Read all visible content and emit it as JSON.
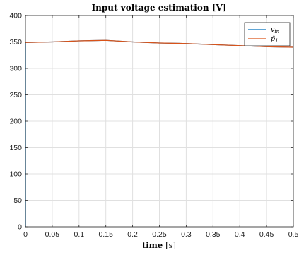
{
  "chart_data": {
    "type": "line",
    "title": "Input voltage estimation [V]",
    "xlabel": "time",
    "xlabel_unit": "[s]",
    "ylabel": "",
    "xlim": [
      0,
      0.5
    ],
    "ylim": [
      0,
      400
    ],
    "xticks": [
      "0",
      "0.05",
      "0.1",
      "0.15",
      "0.2",
      "0.25",
      "0.3",
      "0.35",
      "0.4",
      "0.45",
      "0.5"
    ],
    "yticks": [
      "0",
      "50",
      "100",
      "150",
      "200",
      "250",
      "300",
      "350",
      "400"
    ],
    "grid": true,
    "legend": "top-right",
    "series": [
      {
        "name": "v_in",
        "legend_main": "v",
        "legend_sub": "in",
        "color": "#0072BD",
        "x": [
          0,
          0,
          0.001,
          0.05,
          0.1,
          0.15,
          0.2,
          0.25,
          0.3,
          0.35,
          0.4,
          0.45,
          0.5
        ],
        "y": [
          0,
          350,
          349,
          350,
          352,
          353,
          350,
          348,
          347,
          345,
          343,
          341,
          340
        ]
      },
      {
        "name": "p̂_1",
        "legend_main": "p̂",
        "legend_sub": "1",
        "color": "#D95319",
        "x": [
          0,
          0.05,
          0.1,
          0.15,
          0.2,
          0.25,
          0.3,
          0.35,
          0.4,
          0.45,
          0.5
        ],
        "y": [
          349,
          350,
          352,
          353,
          350,
          348,
          347,
          345,
          343,
          341,
          340
        ]
      }
    ]
  }
}
